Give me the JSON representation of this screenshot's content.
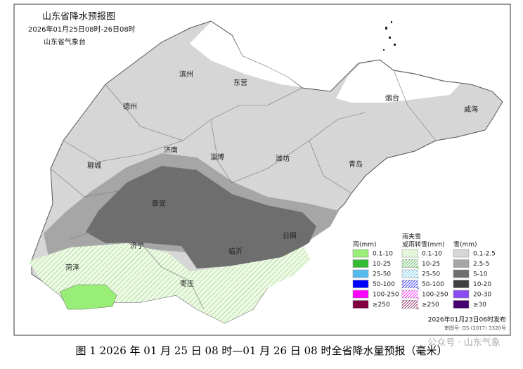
{
  "header": {
    "title": "山东省降水预报图",
    "period": "2026年01月25日08时-26日08时",
    "issuer": "山东省气象台"
  },
  "cities": [
    "滨州",
    "东营",
    "德州",
    "烟台",
    "威海",
    "济南",
    "淄博",
    "潍坊",
    "聊城",
    "青岛",
    "泰安",
    "日照",
    "济宁",
    "临沂",
    "菏泽",
    "枣庄"
  ],
  "legend": {
    "rain": {
      "title_lines": [
        "雨(mm)"
      ],
      "items": [
        {
          "label": "0.1-10",
          "color": "#99ee77"
        },
        {
          "label": "10-25",
          "color": "#33bb33"
        },
        {
          "label": "25-50",
          "color": "#55bbee"
        },
        {
          "label": "50-100",
          "color": "#0000ff"
        },
        {
          "label": "100-250",
          "color": "#ff00ff"
        },
        {
          "label": "≥250",
          "color": "#800040"
        }
      ]
    },
    "sleet": {
      "title_lines": [
        "雨夹雪",
        "或雨转雪(mm)"
      ],
      "items": [
        {
          "label": "0.1-10",
          "color": "#99dd77"
        },
        {
          "label": "10-25",
          "color": "#33aa33"
        },
        {
          "label": "25-50",
          "color": "#55bbee"
        },
        {
          "label": "50-100",
          "color": "#0000ff"
        },
        {
          "label": "100-250",
          "color": "#ff00ff"
        },
        {
          "label": "≥250",
          "color": "#800040"
        }
      ]
    },
    "snow": {
      "title_lines": [
        "雪(mm)"
      ],
      "items": [
        {
          "label": "0.1-2.5",
          "color": "#d6d6d6"
        },
        {
          "label": "2.5-5",
          "color": "#a6a6a6"
        },
        {
          "label": "5-10",
          "color": "#6e6e6e"
        },
        {
          "label": "10-20",
          "color": "#404040"
        },
        {
          "label": "20-30",
          "color": "#8a4cf0"
        },
        {
          "label": "≥30",
          "color": "#44006e"
        }
      ]
    }
  },
  "footer": {
    "issued": "2026年01月23日06时发布",
    "approval": "审图号: GS (2017) 3320号"
  },
  "caption": "图 1 2026 年 01 月 25 日 08 时—01 月 26 日 08 时全省降水量预报（毫米）",
  "watermark": "公众号 · 山东气象"
}
